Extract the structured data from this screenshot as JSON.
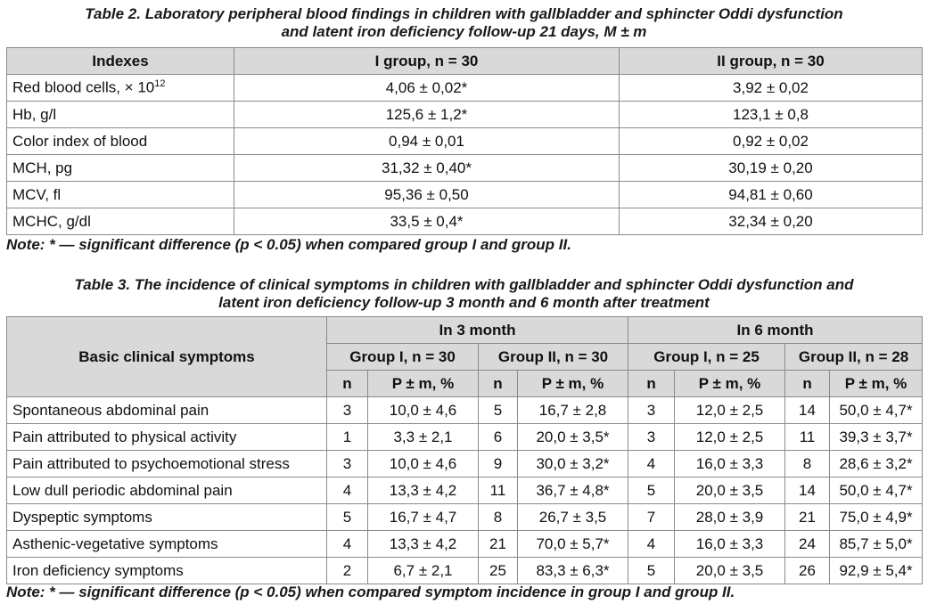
{
  "table2": {
    "caption_line1": "Table 2. Laboratory peripheral blood findings in children with gallbladder and sphincter Oddi dysfunction",
    "caption_line2": "and latent iron deficiency follow-up 21 days, M ± m",
    "headers": [
      "Indexes",
      "I group, n = 30",
      "II group, n = 30"
    ],
    "rows": [
      {
        "index_base": "Red blood cells, × 10",
        "index_sup": "12",
        "g1": "4,06 ± 0,02*",
        "g2": "3,92 ± 0,02"
      },
      {
        "index_base": "Hb, g/l",
        "index_sup": "",
        "g1": "125,6 ± 1,2*",
        "g2": "123,1 ± 0,8"
      },
      {
        "index_base": "Color index of blood",
        "index_sup": "",
        "g1": "0,94 ± 0,01",
        "g2": "0,92 ± 0,02"
      },
      {
        "index_base": "MCH, pg",
        "index_sup": "",
        "g1": "31,32 ± 0,40*",
        "g2": "30,19 ± 0,20"
      },
      {
        "index_base": "MCV, fl",
        "index_sup": "",
        "g1": "95,36 ± 0,50",
        "g2": "94,81 ± 0,60"
      },
      {
        "index_base": "MCHC, g/dl",
        "index_sup": "",
        "g1": "33,5 ± 0,4*",
        "g2": "32,34 ± 0,20"
      }
    ],
    "note": "Note: * — significant difference (p < 0.05) when compared group I and group II."
  },
  "table3": {
    "caption_line1": "Table 3. The incidence of clinical symptoms in children with gallbladder and sphincter Oddi dysfunction and",
    "caption_line2": "latent iron deficiency follow-up 3 month and 6 month after treatment",
    "header_symptoms": "Basic clinical symptoms",
    "header_periods": [
      "In 3 month",
      "In 6 month"
    ],
    "header_groups": [
      "Group I, n = 30",
      "Group II, n = 30",
      "Group I, n = 25",
      "Group II, n = 28"
    ],
    "header_n": "n",
    "header_p": "P ± m, %",
    "rows": [
      {
        "symptom": "Spontaneous abdominal pain",
        "cells": [
          "3",
          "10,0 ± 4,6",
          "5",
          "16,7 ± 2,8",
          "3",
          "12,0 ± 2,5",
          "14",
          "50,0 ± 4,7*"
        ]
      },
      {
        "symptom": "Pain attributed to physical activity",
        "cells": [
          "1",
          "3,3 ± 2,1",
          "6",
          "20,0 ± 3,5*",
          "3",
          "12,0 ± 2,5",
          "11",
          "39,3 ± 3,7*"
        ]
      },
      {
        "symptom": "Pain attributed to psychoemotional stress",
        "cells": [
          "3",
          "10,0 ± 4,6",
          "9",
          "30,0 ± 3,2*",
          "4",
          "16,0 ± 3,3",
          "8",
          "28,6 ± 3,2*"
        ]
      },
      {
        "symptom": "Low dull periodic abdominal pain",
        "cells": [
          "4",
          "13,3 ± 4,2",
          "11",
          "36,7 ± 4,8*",
          "5",
          "20,0 ± 3,5",
          "14",
          "50,0 ± 4,7*"
        ]
      },
      {
        "symptom": "Dyspeptic symptoms",
        "cells": [
          "5",
          "16,7 ± 4,7",
          "8",
          "26,7 ± 3,5",
          "7",
          "28,0 ± 3,9",
          "21",
          "75,0 ± 4,9*"
        ]
      },
      {
        "symptom": "Asthenic-vegetative symptoms",
        "cells": [
          "4",
          "13,3 ± 4,2",
          "21",
          "70,0 ± 5,7*",
          "4",
          "16,0 ± 3,3",
          "24",
          "85,7 ± 5,0*"
        ]
      },
      {
        "symptom": "Iron deficiency symptoms",
        "cells": [
          "2",
          "6,7 ± 2,1",
          "25",
          "83,3 ± 6,3*",
          "5",
          "20,0 ± 3,5",
          "26",
          "92,9 ± 5,4*"
        ]
      }
    ],
    "note": "Note: * — significant difference (p < 0.05) when compared symptom incidence in group I and group II."
  }
}
